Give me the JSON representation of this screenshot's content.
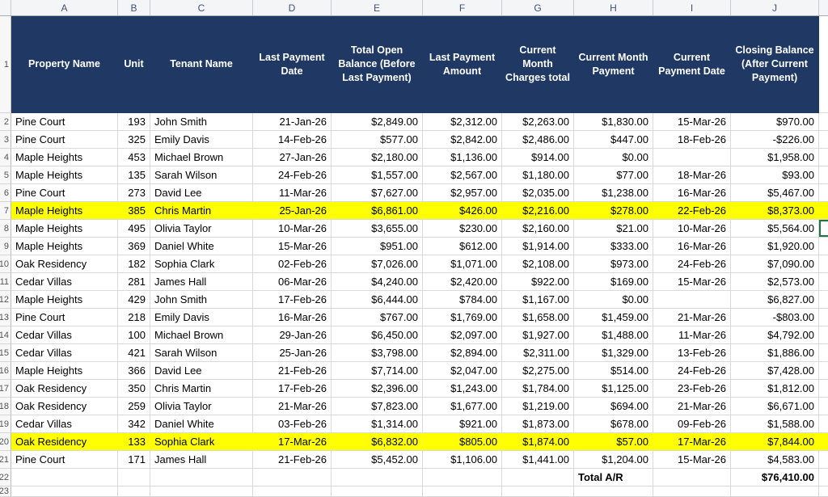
{
  "sheet": {
    "column_letters": [
      "A",
      "B",
      "C",
      "D",
      "E",
      "F",
      "G",
      "H",
      "I",
      "J"
    ],
    "header_row_number": "1",
    "bottom_row_number": "23",
    "header_labels": [
      "Property Name",
      "Unit",
      "Tenant Name",
      "Last Payment Date",
      "Total Open Balance (Before Last Payment)",
      "Last Payment Amount",
      "Current Month Charges total",
      "Current Month Payment",
      "Current Payment Date",
      "Closing Balance (After Current Payment)"
    ],
    "rows": [
      {
        "n": "2",
        "highlight": false,
        "cells": [
          "Pine Court",
          "193",
          "John Smith",
          "21-Jan-26",
          "$2,849.00",
          "$2,312.00",
          "$2,263.00",
          "$1,830.00",
          "15-Mar-26",
          "$970.00"
        ]
      },
      {
        "n": "3",
        "highlight": false,
        "cells": [
          "Pine Court",
          "325",
          "Emily Davis",
          "14-Feb-26",
          "$577.00",
          "$2,842.00",
          "$2,486.00",
          "$447.00",
          "18-Feb-26",
          "-$226.00"
        ]
      },
      {
        "n": "4",
        "highlight": false,
        "cells": [
          "Maple Heights",
          "453",
          "Michael Brown",
          "27-Jan-26",
          "$2,180.00",
          "$1,136.00",
          "$914.00",
          "$0.00",
          "",
          "$1,958.00"
        ]
      },
      {
        "n": "5",
        "highlight": false,
        "cells": [
          "Maple Heights",
          "135",
          "Sarah Wilson",
          "24-Feb-26",
          "$1,557.00",
          "$2,567.00",
          "$1,180.00",
          "$77.00",
          "18-Mar-26",
          "$93.00"
        ]
      },
      {
        "n": "6",
        "highlight": false,
        "cells": [
          "Pine Court",
          "273",
          "David Lee",
          "11-Mar-26",
          "$7,627.00",
          "$2,957.00",
          "$2,035.00",
          "$1,238.00",
          "16-Mar-26",
          "$5,467.00"
        ]
      },
      {
        "n": "7",
        "highlight": true,
        "cells": [
          "Maple Heights",
          "385",
          "Chris Martin",
          "25-Jan-26",
          "$6,861.00",
          "$426.00",
          "$2,216.00",
          "$278.00",
          "22-Feb-26",
          "$8,373.00"
        ]
      },
      {
        "n": "8",
        "highlight": false,
        "cells": [
          "Maple Heights",
          "495",
          "Olivia Taylor",
          "10-Mar-26",
          "$3,655.00",
          "$230.00",
          "$2,160.00",
          "$21.00",
          "10-Mar-26",
          "$5,564.00"
        ]
      },
      {
        "n": "9",
        "highlight": false,
        "cells": [
          "Maple Heights",
          "369",
          "Daniel White",
          "15-Mar-26",
          "$951.00",
          "$612.00",
          "$1,914.00",
          "$333.00",
          "16-Mar-26",
          "$1,920.00"
        ]
      },
      {
        "n": "10",
        "highlight": false,
        "cells": [
          "Oak Residency",
          "182",
          "Sophia Clark",
          "02-Feb-26",
          "$7,026.00",
          "$1,071.00",
          "$2,108.00",
          "$973.00",
          "24-Feb-26",
          "$7,090.00"
        ]
      },
      {
        "n": "11",
        "highlight": false,
        "cells": [
          "Cedar Villas",
          "281",
          "James Hall",
          "06-Mar-26",
          "$4,240.00",
          "$2,420.00",
          "$922.00",
          "$169.00",
          "15-Mar-26",
          "$2,573.00"
        ]
      },
      {
        "n": "12",
        "highlight": false,
        "cells": [
          "Maple Heights",
          "429",
          "John Smith",
          "17-Feb-26",
          "$6,444.00",
          "$784.00",
          "$1,167.00",
          "$0.00",
          "",
          "$6,827.00"
        ]
      },
      {
        "n": "13",
        "highlight": false,
        "cells": [
          "Pine Court",
          "218",
          "Emily Davis",
          "16-Mar-26",
          "$767.00",
          "$1,769.00",
          "$1,658.00",
          "$1,459.00",
          "21-Mar-26",
          "-$803.00"
        ]
      },
      {
        "n": "14",
        "highlight": false,
        "cells": [
          "Cedar Villas",
          "100",
          "Michael Brown",
          "29-Jan-26",
          "$6,450.00",
          "$2,097.00",
          "$1,927.00",
          "$1,488.00",
          "11-Mar-26",
          "$4,792.00"
        ]
      },
      {
        "n": "15",
        "highlight": false,
        "cells": [
          "Cedar Villas",
          "421",
          "Sarah Wilson",
          "25-Jan-26",
          "$3,798.00",
          "$2,894.00",
          "$2,311.00",
          "$1,329.00",
          "13-Feb-26",
          "$1,886.00"
        ]
      },
      {
        "n": "16",
        "highlight": false,
        "cells": [
          "Maple Heights",
          "366",
          "David Lee",
          "21-Feb-26",
          "$7,714.00",
          "$2,047.00",
          "$2,275.00",
          "$514.00",
          "24-Feb-26",
          "$7,428.00"
        ]
      },
      {
        "n": "17",
        "highlight": false,
        "cells": [
          "Oak Residency",
          "350",
          "Chris Martin",
          "17-Feb-26",
          "$2,396.00",
          "$1,243.00",
          "$1,784.00",
          "$1,125.00",
          "23-Feb-26",
          "$1,812.00"
        ]
      },
      {
        "n": "18",
        "highlight": false,
        "cells": [
          "Oak Residency",
          "259",
          "Olivia Taylor",
          "21-Mar-26",
          "$7,823.00",
          "$1,677.00",
          "$1,219.00",
          "$694.00",
          "21-Mar-26",
          "$6,671.00"
        ]
      },
      {
        "n": "19",
        "highlight": false,
        "cells": [
          "Cedar Villas",
          "342",
          "Daniel White",
          "03-Feb-26",
          "$1,314.00",
          "$921.00",
          "$1,873.00",
          "$678.00",
          "09-Feb-26",
          "$1,588.00"
        ]
      },
      {
        "n": "20",
        "highlight": true,
        "cells": [
          "Oak Residency",
          "133",
          "Sophia Clark",
          "17-Mar-26",
          "$6,832.00",
          "$805.00",
          "$1,874.00",
          "$57.00",
          "17-Mar-26",
          "$7,844.00"
        ]
      },
      {
        "n": "21",
        "highlight": false,
        "cells": [
          "Pine Court",
          "171",
          "James Hall",
          "21-Feb-26",
          "$5,452.00",
          "$1,106.00",
          "$1,441.00",
          "$1,204.00",
          "15-Mar-26",
          "$4,583.00"
        ]
      }
    ],
    "total_row": {
      "n": "22",
      "label": "Total A/R",
      "label_col": 7,
      "value": "$76,410.00",
      "value_col": 9
    },
    "colors": {
      "header_bg": "#1f3864",
      "header_text": "#ffffff",
      "highlight": "#ffff00"
    }
  }
}
